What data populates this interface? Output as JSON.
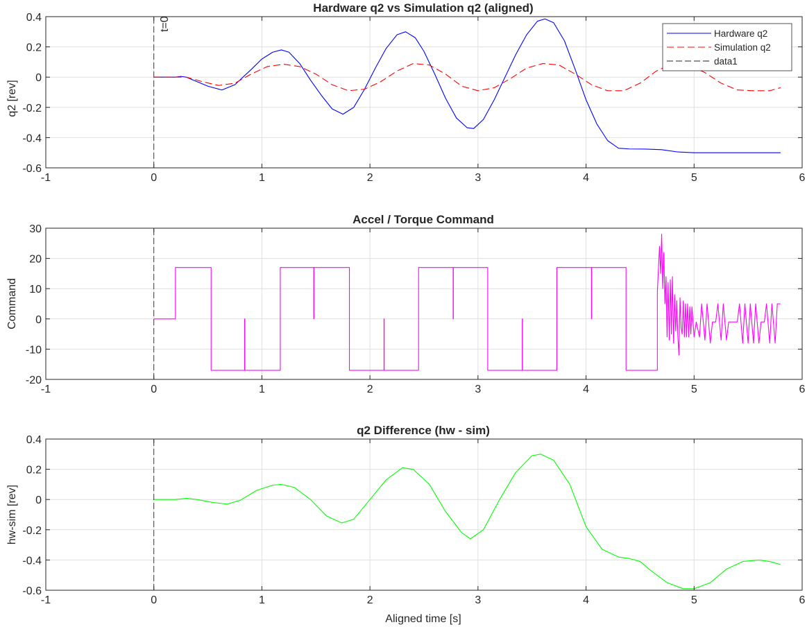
{
  "window": {
    "title": "Hardware q2 vs Simulation q2 (aligned)"
  },
  "chart_data": [
    {
      "type": "line",
      "title": "Hardware q2 vs Simulation q2 (aligned)",
      "xlabel": "",
      "ylabel": "q2 [rev]",
      "xlim": [
        -1,
        6
      ],
      "ylim": [
        -0.6,
        0.4
      ],
      "xticks": [
        -1,
        0,
        1,
        2,
        3,
        4,
        5,
        6
      ],
      "yticks": [
        -0.6,
        -0.4,
        -0.2,
        0,
        0.2,
        0.4
      ],
      "xtick_labels": [
        "-1",
        "0",
        "1",
        "2",
        "3",
        "4",
        "5",
        "6"
      ],
      "ytick_labels": [
        "-0.6",
        "-0.4",
        "-0.2",
        "0",
        "0.2",
        "0.4"
      ],
      "grid": true,
      "legend": "top-right",
      "annotation": {
        "text": "t=0",
        "x": 0,
        "y": 0.4
      },
      "series": [
        {
          "name": "Hardware q2",
          "color": "#0000ff",
          "style": "solid",
          "x": [
            0,
            0.2,
            0.25,
            0.3,
            0.4,
            0.5,
            0.63,
            0.75,
            0.9,
            1.0,
            1.1,
            1.18,
            1.25,
            1.35,
            1.45,
            1.55,
            1.65,
            1.75,
            1.85,
            1.95,
            2.05,
            2.15,
            2.25,
            2.33,
            2.42,
            2.5,
            2.6,
            2.7,
            2.8,
            2.9,
            2.96,
            3.05,
            3.15,
            3.25,
            3.35,
            3.45,
            3.55,
            3.62,
            3.7,
            3.8,
            3.9,
            4.0,
            4.1,
            4.2,
            4.3,
            4.4,
            4.55,
            4.7,
            4.85,
            5.0,
            5.2,
            5.5,
            5.8
          ],
          "y": [
            0,
            0.0,
            0.005,
            0.0,
            -0.03,
            -0.06,
            -0.085,
            -0.05,
            0.05,
            0.12,
            0.165,
            0.18,
            0.165,
            0.09,
            -0.02,
            -0.12,
            -0.21,
            -0.245,
            -0.2,
            -0.08,
            0.06,
            0.19,
            0.28,
            0.3,
            0.26,
            0.17,
            0.02,
            -0.14,
            -0.27,
            -0.335,
            -0.34,
            -0.28,
            -0.15,
            0.0,
            0.15,
            0.28,
            0.37,
            0.385,
            0.36,
            0.24,
            0.05,
            -0.15,
            -0.31,
            -0.42,
            -0.47,
            -0.475,
            -0.476,
            -0.48,
            -0.495,
            -0.5,
            -0.5,
            -0.5,
            -0.5
          ]
        },
        {
          "name": "Simulation q2",
          "color": "#ff0000",
          "style": "dashed",
          "x": [
            0,
            0.2,
            0.3,
            0.45,
            0.6,
            0.75,
            0.9,
            1.05,
            1.2,
            1.35,
            1.5,
            1.65,
            1.8,
            1.95,
            2.1,
            2.25,
            2.4,
            2.55,
            2.7,
            2.85,
            3.0,
            3.15,
            3.3,
            3.45,
            3.6,
            3.75,
            3.9,
            4.05,
            4.2,
            4.35,
            4.5,
            4.65,
            4.8,
            4.95,
            5.1,
            5.25,
            5.4,
            5.55,
            5.7,
            5.8
          ],
          "y": [
            0,
            0.0,
            0.0,
            -0.03,
            -0.055,
            -0.04,
            0.02,
            0.07,
            0.085,
            0.07,
            0.02,
            -0.05,
            -0.09,
            -0.08,
            -0.03,
            0.04,
            0.09,
            0.08,
            0.02,
            -0.06,
            -0.09,
            -0.07,
            -0.01,
            0.06,
            0.09,
            0.08,
            0.02,
            -0.05,
            -0.09,
            -0.09,
            -0.04,
            0.04,
            0.09,
            0.08,
            0.03,
            -0.04,
            -0.085,
            -0.09,
            -0.09,
            -0.07
          ]
        },
        {
          "name": "data1",
          "color": "#262626",
          "style": "dashed",
          "x": [
            0,
            0
          ],
          "y": [
            -0.6,
            0.4
          ]
        }
      ]
    },
    {
      "type": "line",
      "title": "Accel / Torque Command",
      "xlabel": "",
      "ylabel": "Command",
      "xlim": [
        -1,
        6
      ],
      "ylim": [
        -20,
        30
      ],
      "xticks": [
        -1,
        0,
        1,
        2,
        3,
        4,
        5,
        6
      ],
      "yticks": [
        -20,
        -10,
        0,
        10,
        20,
        30
      ],
      "xtick_labels": [
        "-1",
        "0",
        "1",
        "2",
        "3",
        "4",
        "5",
        "6"
      ],
      "ytick_labels": [
        "-20",
        "-10",
        "0",
        "10",
        "20",
        "30"
      ],
      "grid": true,
      "series": [
        {
          "name": "",
          "color": "#ff00ff",
          "style": "solid",
          "x": [
            0,
            0.2,
            0.2,
            0.53,
            0.53,
            0.84,
            0.84,
            0.842,
            0.842,
            1.17,
            1.17,
            1.48,
            1.48,
            1.482,
            1.482,
            1.81,
            1.81,
            2.13,
            2.13,
            2.132,
            2.132,
            2.45,
            2.45,
            2.77,
            2.77,
            2.772,
            2.772,
            3.09,
            3.09,
            3.41,
            3.41,
            3.412,
            3.412,
            3.73,
            3.73,
            4.05,
            4.05,
            4.052,
            4.052,
            4.37,
            4.37,
            4.66,
            4.66,
            4.68,
            4.69,
            4.7,
            4.71,
            4.72,
            4.73,
            4.74,
            4.75,
            4.76,
            4.77,
            4.78,
            4.79,
            4.8,
            4.81,
            4.82,
            4.83,
            4.84,
            4.85,
            4.86,
            4.87,
            4.88,
            4.89,
            4.9,
            4.91,
            4.92,
            4.93,
            4.94,
            4.95,
            4.96,
            4.97,
            4.98,
            5.0,
            5.02,
            5.05,
            5.07,
            5.1,
            5.12,
            5.15,
            5.17,
            5.2,
            5.22,
            5.25,
            5.27,
            5.3,
            5.32,
            5.35,
            5.37,
            5.4,
            5.42,
            5.45,
            5.47,
            5.5,
            5.52,
            5.55,
            5.57,
            5.6,
            5.62,
            5.65,
            5.67,
            5.7,
            5.72,
            5.75,
            5.77,
            5.8
          ],
          "y": [
            0,
            0,
            17,
            17,
            -17,
            -17,
            0,
            0,
            -17,
            -17,
            17,
            17,
            0,
            0,
            17,
            17,
            -17,
            -17,
            0,
            0,
            -17,
            -17,
            17,
            17,
            0,
            0,
            17,
            17,
            -17,
            -17,
            0,
            0,
            -17,
            -17,
            17,
            17,
            0,
            0,
            17,
            17,
            -17,
            -17,
            9,
            24,
            15,
            28,
            10,
            22,
            5,
            14,
            -6,
            12,
            -7,
            13,
            -5,
            14,
            -8,
            8,
            -4,
            6,
            -6,
            -12,
            7,
            -3,
            -5,
            6,
            -6,
            5,
            -6,
            5,
            -6,
            4,
            -5,
            4,
            -6,
            -1,
            -6,
            5,
            -7,
            5,
            -8,
            -1,
            -1,
            5,
            -7,
            5,
            -7,
            -1,
            -1,
            -1,
            -1,
            5,
            -8,
            5,
            -8,
            5,
            -8,
            5,
            -8,
            -1,
            -1,
            5,
            -8,
            5,
            -8,
            5,
            5
          ]
        },
        {
          "name": "",
          "color": "#262626",
          "style": "dashed",
          "x": [
            0,
            0
          ],
          "y": [
            -20,
            30
          ]
        }
      ]
    },
    {
      "type": "line",
      "title": "q2 Difference (hw - sim)",
      "xlabel": "Aligned time [s]",
      "ylabel": "hw-sim [rev]",
      "xlim": [
        -1,
        6
      ],
      "ylim": [
        -0.6,
        0.4
      ],
      "xticks": [
        -1,
        0,
        1,
        2,
        3,
        4,
        5,
        6
      ],
      "yticks": [
        -0.6,
        -0.4,
        -0.2,
        0,
        0.2,
        0.4
      ],
      "xtick_labels": [
        "-1",
        "0",
        "1",
        "2",
        "3",
        "4",
        "5",
        "6"
      ],
      "ytick_labels": [
        "-0.6",
        "-0.4",
        "-0.2",
        "0",
        "0.2",
        "0.4"
      ],
      "grid": true,
      "series": [
        {
          "name": "",
          "color": "#00ff00",
          "style": "solid",
          "x": [
            0,
            0.2,
            0.3,
            0.4,
            0.55,
            0.68,
            0.8,
            0.95,
            1.1,
            1.18,
            1.3,
            1.45,
            1.6,
            1.74,
            1.85,
            2.0,
            2.15,
            2.3,
            2.4,
            2.55,
            2.7,
            2.85,
            2.93,
            3.05,
            3.2,
            3.35,
            3.5,
            3.58,
            3.7,
            3.85,
            4.0,
            4.15,
            4.3,
            4.4,
            4.5,
            4.6,
            4.75,
            4.9,
            5.0,
            5.15,
            5.3,
            5.45,
            5.6,
            5.7,
            5.8
          ],
          "y": [
            0,
            0.0,
            0.008,
            0.0,
            -0.02,
            -0.03,
            -0.005,
            0.06,
            0.095,
            0.1,
            0.08,
            0.0,
            -0.11,
            -0.155,
            -0.13,
            0.0,
            0.13,
            0.21,
            0.2,
            0.1,
            -0.08,
            -0.22,
            -0.26,
            -0.2,
            0.0,
            0.18,
            0.29,
            0.3,
            0.26,
            0.1,
            -0.18,
            -0.33,
            -0.38,
            -0.39,
            -0.41,
            -0.47,
            -0.55,
            -0.59,
            -0.59,
            -0.55,
            -0.46,
            -0.41,
            -0.4,
            -0.41,
            -0.43
          ]
        },
        {
          "name": "",
          "color": "#262626",
          "style": "dashed",
          "x": [
            0,
            0
          ],
          "y": [
            -0.6,
            0.4
          ]
        }
      ]
    }
  ]
}
